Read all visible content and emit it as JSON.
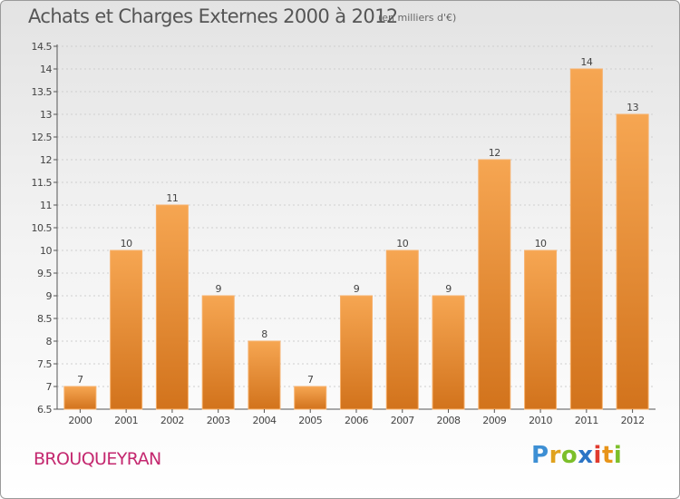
{
  "title": "Achats et Charges Externes 2000 à 2012",
  "subtitle": "(en milliers d'€)",
  "commune": "BROUQUEYRAN",
  "brand": {
    "letters": [
      "P",
      "r",
      "o",
      "x",
      "i",
      "t",
      "i"
    ],
    "colors": [
      "#3d8fd4",
      "#e0a21e",
      "#7cbf2a",
      "#2b74c5",
      "#e03b2e",
      "#e89419",
      "#7cbf2a"
    ]
  },
  "colors": {
    "bar_top": "#f6a652",
    "bar_bottom": "#d2731c",
    "axis": "#555555",
    "grid": "#cfcfcf"
  },
  "chart_data": {
    "type": "bar",
    "categories": [
      "2000",
      "2001",
      "2002",
      "2003",
      "2004",
      "2005",
      "2006",
      "2007",
      "2008",
      "2009",
      "2010",
      "2011",
      "2012"
    ],
    "values": [
      7,
      10,
      11,
      9,
      8,
      7,
      9,
      10,
      9,
      12,
      10,
      14,
      13
    ],
    "data_labels": [
      "7",
      "10",
      "11",
      "9",
      "8",
      "7",
      "9",
      "10",
      "9",
      "12",
      "10",
      "14",
      "13"
    ],
    "ylim": [
      6.5,
      14.5
    ],
    "yticks": [
      "6.5",
      "7",
      "7.5",
      "8",
      "8.5",
      "9",
      "9.5",
      "10",
      "10.5",
      "11",
      "11.5",
      "12",
      "12.5",
      "13",
      "13.5",
      "14",
      "14.5"
    ],
    "grid": true,
    "xlabel": "",
    "ylabel": ""
  }
}
